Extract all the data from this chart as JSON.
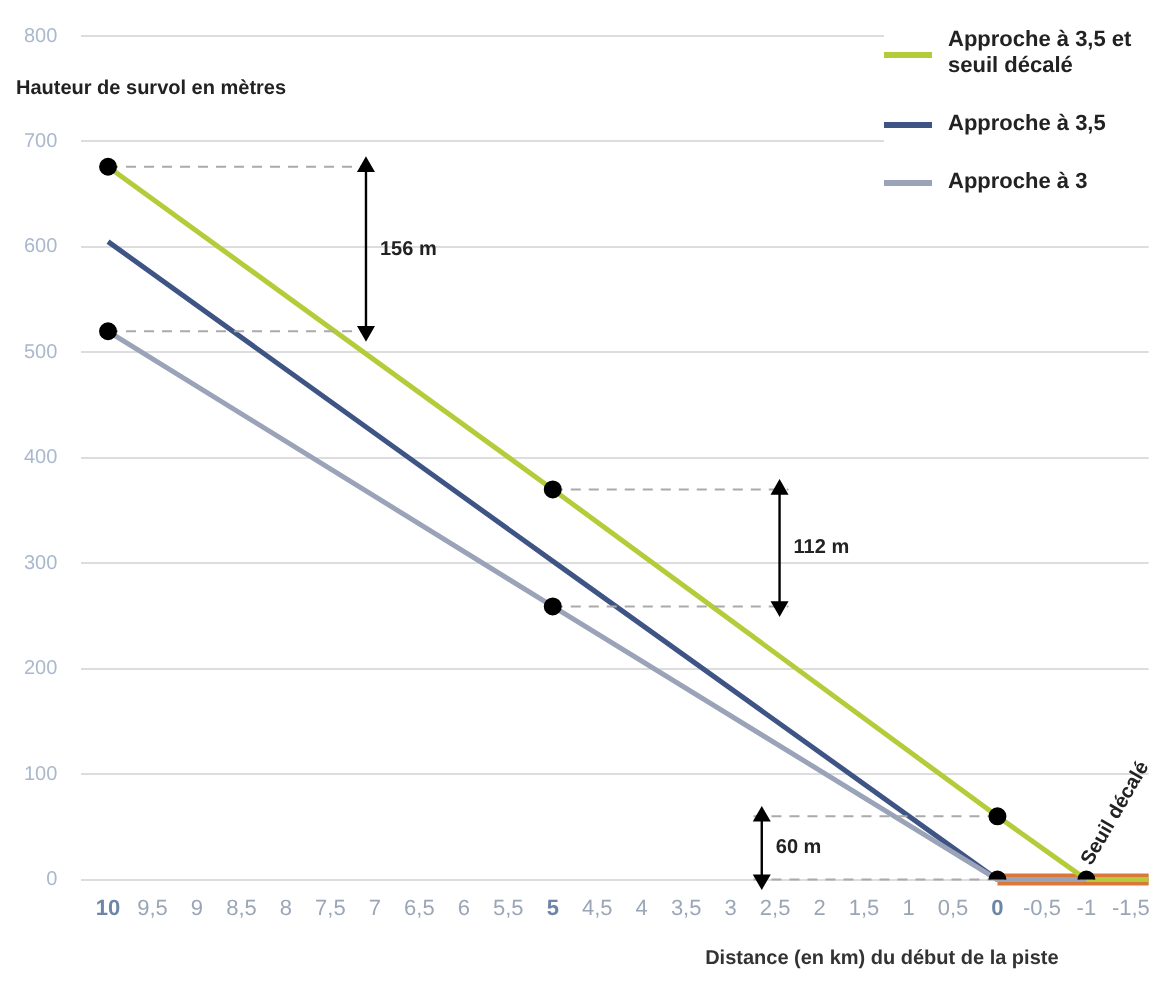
{
  "chart_data": {
    "type": "line",
    "xlabel": "Distance (en km) du début de la piste",
    "ylabel": "Hauteur de survol en mètres",
    "xlim": [
      10.3,
      -1.7
    ],
    "ylim": [
      0,
      800
    ],
    "xticks": [
      10,
      {
        "value": 9.5,
        "label": "9,5"
      },
      9,
      {
        "value": 8.5,
        "label": "8,5"
      },
      8,
      {
        "value": 7.5,
        "label": "7,5"
      },
      7,
      {
        "value": 6.5,
        "label": "6,5"
      },
      6,
      {
        "value": 5.5,
        "label": "5,5"
      },
      5,
      {
        "value": 4.5,
        "label": "4,5"
      },
      4,
      {
        "value": 3.5,
        "label": "3,5"
      },
      3,
      {
        "value": 2.5,
        "label": "2,5"
      },
      2,
      {
        "value": 1.5,
        "label": "1,5"
      },
      1,
      {
        "value": 0.5,
        "label": "0,5"
      },
      0,
      {
        "value": -0.5,
        "label": "-0,5"
      },
      -1,
      {
        "value": -1.5,
        "label": "-1,5"
      }
    ],
    "yticks": [
      0,
      100,
      200,
      300,
      400,
      500,
      600,
      700,
      800
    ],
    "grid": "y",
    "legend": "top right",
    "marker": "none",
    "series": [
      {
        "color": "#d9783a",
        "x": [
          0,
          -1.7
        ],
        "values": [
          0,
          0
        ]
      },
      {
        "name": "Approche à 3,5 et seuil décalé",
        "color": "#b5cc3a",
        "x": [
          10,
          5,
          0,
          -1,
          -1.7
        ],
        "values": [
          676,
          370,
          60,
          0,
          0
        ]
      },
      {
        "name": "Approche à 3,5",
        "color": "#3e5485",
        "x": [
          10,
          5,
          0
        ],
        "values": [
          605,
          302,
          0
        ]
      },
      {
        "name": "Approche à 3",
        "color": "#9aa3b8",
        "x": [
          10,
          5,
          0,
          -1
        ],
        "values": [
          520,
          259,
          0,
          0
        ]
      },
      {
        "color": "#aaaaaa",
        "line_style": "dashed",
        "x": [
          10,
          7.05
        ],
        "values": [
          676,
          676
        ]
      },
      {
        "color": "#aaaaaa",
        "line_style": "dashed",
        "x": [
          10,
          7.05
        ],
        "values": [
          520,
          520
        ]
      },
      {
        "color": "#aaaaaa",
        "line_style": "dashed",
        "x": [
          5,
          2.35
        ],
        "values": [
          370,
          370
        ]
      },
      {
        "color": "#aaaaaa",
        "line_style": "dashed",
        "x": [
          5,
          2.35
        ],
        "values": [
          259,
          259
        ]
      },
      {
        "color": "#aaaaaa",
        "line_style": "dashed",
        "x": [
          0,
          2.75
        ],
        "values": [
          60,
          60
        ]
      },
      {
        "color": "#aaaaaa",
        "line_style": "dashed",
        "x": [
          0,
          2.75
        ],
        "values": [
          0,
          0
        ]
      },
      {
        "color": "#000000",
        "marker": "triangle",
        "x": [
          7.1,
          7.1
        ],
        "values": [
          520,
          676
        ]
      },
      {
        "color": "#000000",
        "marker": "triangle",
        "x": [
          2.45,
          2.45
        ],
        "values": [
          259,
          370
        ]
      },
      {
        "color": "#000000",
        "marker": "triangle",
        "x": [
          2.65,
          2.65
        ],
        "values": [
          0,
          60
        ]
      },
      {
        "type": "scatter",
        "marker": "circle",
        "color": "#000000",
        "x": [
          10,
          5,
          0,
          10,
          5,
          0,
          -1
        ],
        "values": [
          676,
          370,
          60,
          520,
          259,
          0,
          0
        ]
      }
    ],
    "annotations": [
      {
        "text": "156 m",
        "x": 7.1,
        "y": 598
      },
      {
        "text": "112 m",
        "x": 2.45,
        "y": 315
      },
      {
        "text": "60 m",
        "x": 2.65,
        "y": 30
      },
      {
        "text": "Seuil décalé",
        "x": -1,
        "y": 0
      }
    ]
  }
}
